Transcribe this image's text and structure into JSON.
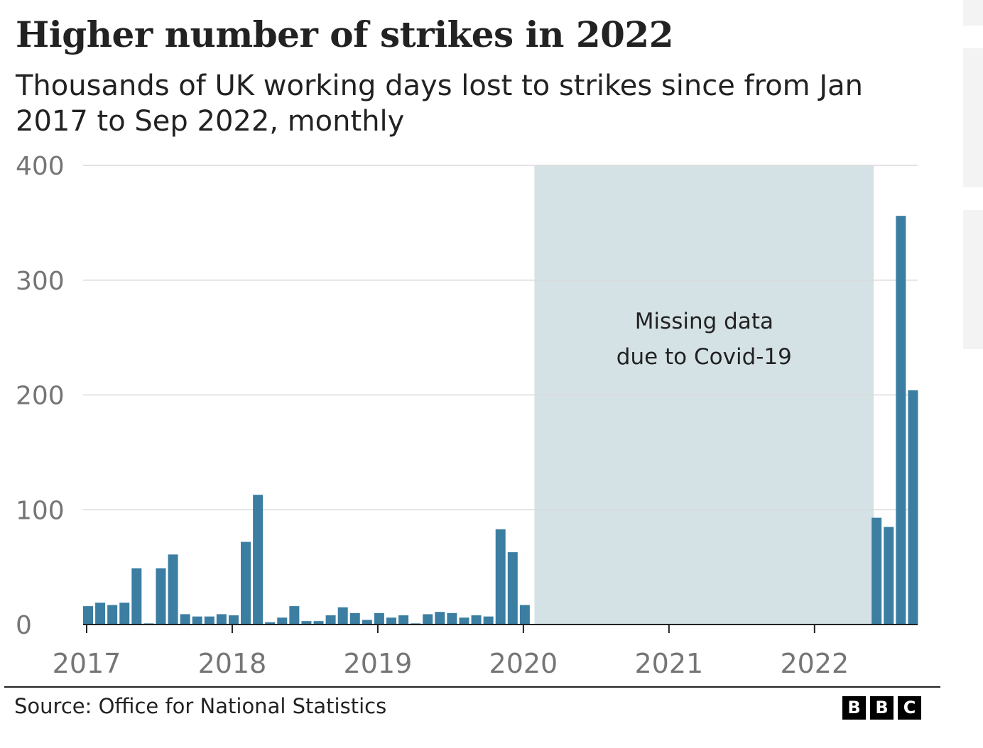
{
  "title": "Higher number of strikes in 2022",
  "subtitle": "Thousands of UK working days lost to strikes since from Jan 2017 to Sep 2022, monthly",
  "source": "Source: Office for National Statistics",
  "logo": [
    "B",
    "B",
    "C"
  ],
  "colors": {
    "bar": "#3b7ea1",
    "shade": "#d5e2e5",
    "grid": "#d9d9d9",
    "axis": "#222222",
    "tick_text": "#757575"
  },
  "chart_data": {
    "type": "bar",
    "title": "Higher number of strikes in 2022",
    "subtitle": "Thousands of UK working days lost to strikes since from Jan 2017 to Sep 2022, monthly",
    "ylim": [
      0,
      400
    ],
    "yticks": [
      0,
      100,
      200,
      300,
      400
    ],
    "xlim": [
      "2017-01",
      "2022-10"
    ],
    "xticks": [
      "2017",
      "2018",
      "2019",
      "2020",
      "2021",
      "2022"
    ],
    "grid": true,
    "annotation": {
      "text_lines": [
        "Missing data",
        "due to Covid-19"
      ],
      "from": "2020-02",
      "to": "2022-06"
    },
    "series": [
      {
        "x": [
          "2017-01",
          "2017-02",
          "2017-03",
          "2017-04",
          "2017-05",
          "2017-06",
          "2017-07",
          "2017-08",
          "2017-09",
          "2017-10",
          "2017-11",
          "2017-12",
          "2018-01",
          "2018-02",
          "2018-03",
          "2018-04",
          "2018-05",
          "2018-06",
          "2018-07",
          "2018-08",
          "2018-09",
          "2018-10",
          "2018-11",
          "2018-12",
          "2019-01",
          "2019-02",
          "2019-03",
          "2019-04",
          "2019-05",
          "2019-06",
          "2019-07",
          "2019-08",
          "2019-09",
          "2019-10",
          "2019-11",
          "2019-12",
          "2020-01",
          "2022-06",
          "2022-07",
          "2022-08",
          "2022-09"
        ],
        "values": [
          16,
          19,
          17,
          19,
          49,
          1,
          49,
          61,
          9,
          7,
          7,
          9,
          8,
          72,
          113,
          2,
          6,
          16,
          3,
          3,
          8,
          15,
          10,
          4,
          10,
          6,
          8,
          1,
          9,
          11,
          10,
          6,
          8,
          7,
          83,
          63,
          17,
          93,
          85,
          356,
          204
        ]
      }
    ]
  }
}
